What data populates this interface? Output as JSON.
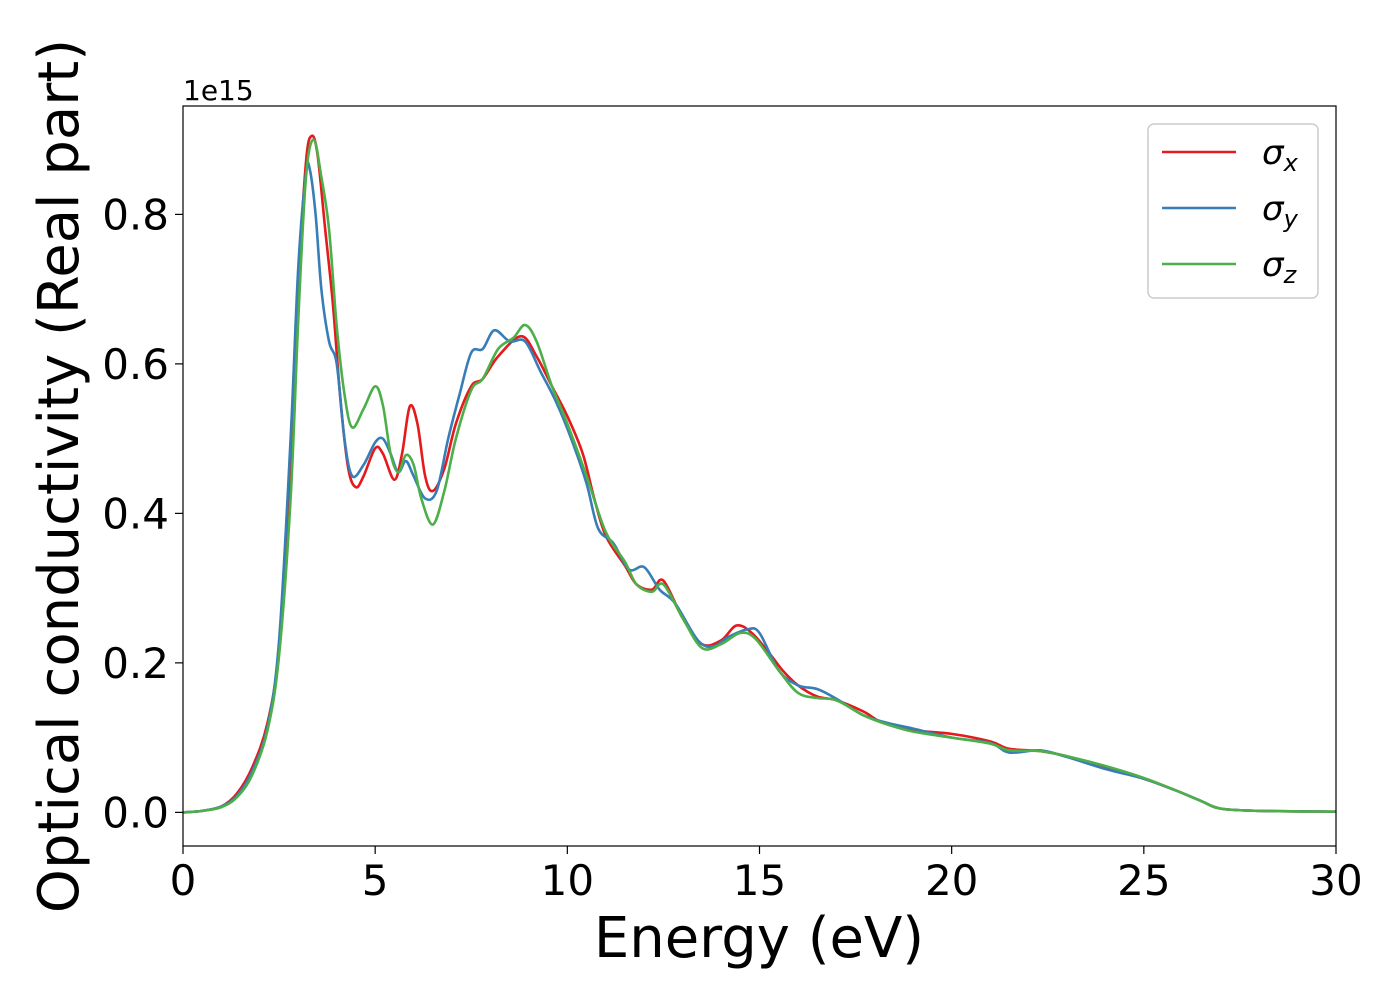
{
  "chart_data": {
    "type": "line",
    "title": "",
    "xlabel": "Energy (eV)",
    "ylabel": "Optical conductivity (Real part)",
    "y_offset_label": "1e15",
    "xlim": [
      0,
      30
    ],
    "ylim": [
      -0.045,
      0.945
    ],
    "x_ticks": [
      0,
      5,
      10,
      15,
      20,
      25,
      30
    ],
    "x_tick_labels": [
      "0",
      "5",
      "10",
      "15",
      "20",
      "25",
      "30"
    ],
    "y_ticks": [
      0.0,
      0.2,
      0.4,
      0.6,
      0.8
    ],
    "y_tick_labels": [
      "0.0",
      "0.2",
      "0.4",
      "0.6",
      "0.8"
    ],
    "grid": false,
    "legend_position": "top-right",
    "series": [
      {
        "name": "σx",
        "symbol": "σ",
        "subscript": "x",
        "color": "#e41a1c",
        "points": [
          [
            0,
            0.0
          ],
          [
            0.5,
            0.002
          ],
          [
            1.0,
            0.008
          ],
          [
            1.4,
            0.025
          ],
          [
            1.8,
            0.06
          ],
          [
            2.2,
            0.12
          ],
          [
            2.5,
            0.22
          ],
          [
            2.8,
            0.45
          ],
          [
            3.0,
            0.7
          ],
          [
            3.2,
            0.87
          ],
          [
            3.35,
            0.905
          ],
          [
            3.5,
            0.88
          ],
          [
            3.7,
            0.78
          ],
          [
            3.9,
            0.68
          ],
          [
            4.1,
            0.55
          ],
          [
            4.3,
            0.46
          ],
          [
            4.5,
            0.435
          ],
          [
            4.7,
            0.45
          ],
          [
            5.0,
            0.487
          ],
          [
            5.2,
            0.48
          ],
          [
            5.5,
            0.445
          ],
          [
            5.7,
            0.48
          ],
          [
            5.9,
            0.543
          ],
          [
            6.1,
            0.52
          ],
          [
            6.3,
            0.45
          ],
          [
            6.5,
            0.43
          ],
          [
            6.8,
            0.46
          ],
          [
            7.1,
            0.52
          ],
          [
            7.5,
            0.57
          ],
          [
            7.8,
            0.58
          ],
          [
            8.2,
            0.61
          ],
          [
            8.8,
            0.637
          ],
          [
            9.2,
            0.61
          ],
          [
            9.6,
            0.57
          ],
          [
            10.0,
            0.53
          ],
          [
            10.4,
            0.48
          ],
          [
            10.7,
            0.42
          ],
          [
            11.0,
            0.37
          ],
          [
            11.5,
            0.33
          ],
          [
            11.8,
            0.305
          ],
          [
            12.2,
            0.298
          ],
          [
            12.5,
            0.31
          ],
          [
            13.0,
            0.26
          ],
          [
            13.5,
            0.225
          ],
          [
            14.0,
            0.23
          ],
          [
            14.4,
            0.25
          ],
          [
            14.8,
            0.24
          ],
          [
            15.3,
            0.21
          ],
          [
            15.6,
            0.19
          ],
          [
            16.0,
            0.17
          ],
          [
            16.5,
            0.155
          ],
          [
            17.0,
            0.15
          ],
          [
            17.7,
            0.135
          ],
          [
            18.2,
            0.12
          ],
          [
            19.0,
            0.11
          ],
          [
            20.0,
            0.105
          ],
          [
            21.0,
            0.095
          ],
          [
            21.5,
            0.085
          ],
          [
            22.3,
            0.082
          ],
          [
            23.0,
            0.075
          ],
          [
            24.0,
            0.06
          ],
          [
            25.0,
            0.045
          ],
          [
            25.8,
            0.03
          ],
          [
            26.5,
            0.015
          ],
          [
            27.0,
            0.005
          ],
          [
            28.0,
            0.002
          ],
          [
            30.0,
            0.001
          ]
        ]
      },
      {
        "name": "σy",
        "symbol": "σ",
        "subscript": "y",
        "color": "#377eb8",
        "points": [
          [
            0,
            0.0
          ],
          [
            0.5,
            0.002
          ],
          [
            1.0,
            0.008
          ],
          [
            1.4,
            0.022
          ],
          [
            1.8,
            0.055
          ],
          [
            2.2,
            0.115
          ],
          [
            2.5,
            0.23
          ],
          [
            2.8,
            0.5
          ],
          [
            3.0,
            0.73
          ],
          [
            3.2,
            0.855
          ],
          [
            3.3,
            0.86
          ],
          [
            3.45,
            0.8
          ],
          [
            3.6,
            0.7
          ],
          [
            3.8,
            0.63
          ],
          [
            4.0,
            0.6
          ],
          [
            4.2,
            0.5
          ],
          [
            4.4,
            0.45
          ],
          [
            4.7,
            0.465
          ],
          [
            5.0,
            0.495
          ],
          [
            5.2,
            0.5
          ],
          [
            5.4,
            0.48
          ],
          [
            5.6,
            0.455
          ],
          [
            5.8,
            0.47
          ],
          [
            6.0,
            0.45
          ],
          [
            6.3,
            0.42
          ],
          [
            6.6,
            0.43
          ],
          [
            6.9,
            0.5
          ],
          [
            7.2,
            0.56
          ],
          [
            7.5,
            0.615
          ],
          [
            7.8,
            0.62
          ],
          [
            8.1,
            0.645
          ],
          [
            8.5,
            0.63
          ],
          [
            8.9,
            0.63
          ],
          [
            9.3,
            0.59
          ],
          [
            9.7,
            0.55
          ],
          [
            10.1,
            0.5
          ],
          [
            10.5,
            0.44
          ],
          [
            10.8,
            0.38
          ],
          [
            11.2,
            0.36
          ],
          [
            11.6,
            0.325
          ],
          [
            12.0,
            0.328
          ],
          [
            12.4,
            0.298
          ],
          [
            12.8,
            0.28
          ],
          [
            13.4,
            0.23
          ],
          [
            13.8,
            0.222
          ],
          [
            14.2,
            0.235
          ],
          [
            14.7,
            0.245
          ],
          [
            15.0,
            0.24
          ],
          [
            15.5,
            0.19
          ],
          [
            16.0,
            0.17
          ],
          [
            16.5,
            0.165
          ],
          [
            17.0,
            0.152
          ],
          [
            17.7,
            0.13
          ],
          [
            18.3,
            0.12
          ],
          [
            19.0,
            0.112
          ],
          [
            20.0,
            0.1
          ],
          [
            21.0,
            0.093
          ],
          [
            21.5,
            0.08
          ],
          [
            22.3,
            0.083
          ],
          [
            23.0,
            0.074
          ],
          [
            24.0,
            0.058
          ],
          [
            25.0,
            0.045
          ],
          [
            25.8,
            0.03
          ],
          [
            26.5,
            0.015
          ],
          [
            27.0,
            0.005
          ],
          [
            28.0,
            0.002
          ],
          [
            30.0,
            0.001
          ]
        ]
      },
      {
        "name": "σz",
        "symbol": "σ",
        "subscript": "z",
        "color": "#4daf4a",
        "points": [
          [
            0,
            0.0
          ],
          [
            0.5,
            0.002
          ],
          [
            1.0,
            0.007
          ],
          [
            1.4,
            0.02
          ],
          [
            1.8,
            0.05
          ],
          [
            2.2,
            0.11
          ],
          [
            2.5,
            0.21
          ],
          [
            2.8,
            0.42
          ],
          [
            3.0,
            0.66
          ],
          [
            3.2,
            0.85
          ],
          [
            3.4,
            0.9
          ],
          [
            3.6,
            0.85
          ],
          [
            3.8,
            0.78
          ],
          [
            4.0,
            0.65
          ],
          [
            4.2,
            0.56
          ],
          [
            4.4,
            0.515
          ],
          [
            4.7,
            0.54
          ],
          [
            5.0,
            0.57
          ],
          [
            5.2,
            0.545
          ],
          [
            5.4,
            0.48
          ],
          [
            5.6,
            0.455
          ],
          [
            5.8,
            0.478
          ],
          [
            6.0,
            0.465
          ],
          [
            6.2,
            0.42
          ],
          [
            6.5,
            0.385
          ],
          [
            6.8,
            0.43
          ],
          [
            7.1,
            0.5
          ],
          [
            7.5,
            0.565
          ],
          [
            7.8,
            0.58
          ],
          [
            8.2,
            0.62
          ],
          [
            8.6,
            0.635
          ],
          [
            8.9,
            0.652
          ],
          [
            9.2,
            0.63
          ],
          [
            9.6,
            0.57
          ],
          [
            10.0,
            0.52
          ],
          [
            10.5,
            0.45
          ],
          [
            11.0,
            0.375
          ],
          [
            11.5,
            0.335
          ],
          [
            11.8,
            0.305
          ],
          [
            12.2,
            0.295
          ],
          [
            12.5,
            0.305
          ],
          [
            13.0,
            0.26
          ],
          [
            13.5,
            0.22
          ],
          [
            14.0,
            0.225
          ],
          [
            14.5,
            0.24
          ],
          [
            14.9,
            0.232
          ],
          [
            15.5,
            0.19
          ],
          [
            16.0,
            0.16
          ],
          [
            16.5,
            0.153
          ],
          [
            17.0,
            0.15
          ],
          [
            17.7,
            0.13
          ],
          [
            18.3,
            0.118
          ],
          [
            19.0,
            0.108
          ],
          [
            20.0,
            0.1
          ],
          [
            21.0,
            0.092
          ],
          [
            21.5,
            0.083
          ],
          [
            22.3,
            0.082
          ],
          [
            23.0,
            0.075
          ],
          [
            24.0,
            0.062
          ],
          [
            25.0,
            0.046
          ],
          [
            25.8,
            0.03
          ],
          [
            26.5,
            0.015
          ],
          [
            27.0,
            0.005
          ],
          [
            28.0,
            0.002
          ],
          [
            30.0,
            0.001
          ]
        ]
      }
    ]
  }
}
